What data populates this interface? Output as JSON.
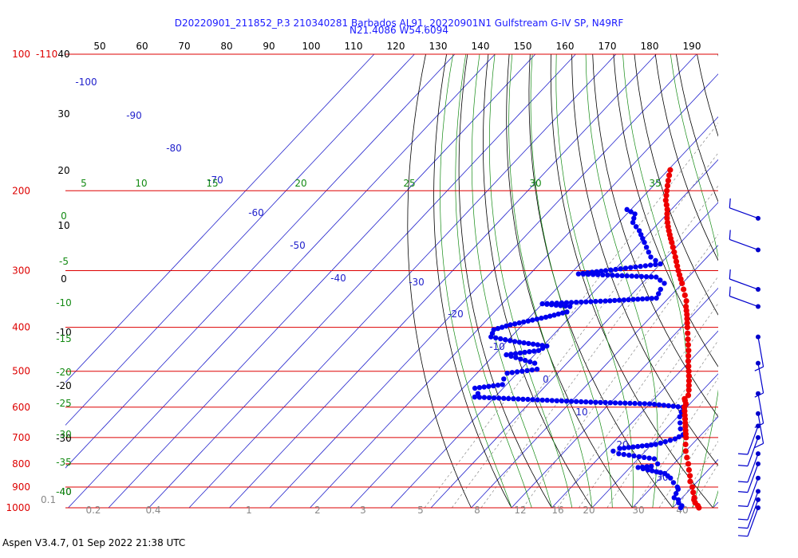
{
  "header": {
    "title_line1": "D20220901_211852_P.3 210340281 Barbados AL91, 20220901N1 Gulfstream G-IV SP, N49RF",
    "title_line2": "N21.4086 W54.6094"
  },
  "footer": {
    "text": "Aspen V3.4.7, 01 Sep 2022  21:38 UTC"
  },
  "chart_data": {
    "type": "skew-t",
    "pressure_levels": [
      {
        "p": 100,
        "label": "100"
      },
      {
        "p": 200,
        "label": "200"
      },
      {
        "p": 300,
        "label": "300"
      },
      {
        "p": 400,
        "label": "400"
      },
      {
        "p": 500,
        "label": "500"
      },
      {
        "p": 600,
        "label": "600"
      },
      {
        "p": 700,
        "label": "700"
      },
      {
        "p": 800,
        "label": "800"
      },
      {
        "p": 900,
        "label": "900"
      },
      {
        "p": 1000,
        "label": "1000"
      }
    ],
    "extra_label": "-110",
    "bottom_left_label": "0.1",
    "top_axis_labels": [
      "50",
      "60",
      "70",
      "80",
      "90",
      "100",
      "110",
      "120",
      "130",
      "140",
      "150",
      "160",
      "170",
      "180",
      "190"
    ],
    "left_axis_labels": [
      "40",
      "30",
      "20",
      "10",
      "0",
      "-10",
      "-20",
      "-30",
      "-40"
    ],
    "isotherm_labels": [
      "-100",
      "-90",
      "-80",
      "-70",
      "-60",
      "-50",
      "-40",
      "-30",
      "-20",
      "-10",
      "0",
      "10",
      "20",
      "30"
    ],
    "moist_adiabat_labels": [
      "5",
      "10",
      "15",
      "20",
      "25",
      "30",
      "35"
    ],
    "dry_adiabat_labels": [
      "0",
      "-5",
      "-10",
      "-15",
      "-20",
      "-25",
      "-30",
      "-35",
      "-40"
    ],
    "mixing_ratio_labels": [
      "0.2",
      "0.4",
      "1",
      "2",
      "3",
      "5",
      "8",
      "12",
      "16",
      "20",
      "30",
      "40"
    ],
    "temperature": [
      {
        "p": 1000,
        "t": 26.5
      },
      {
        "p": 990,
        "t": 25.8
      },
      {
        "p": 975,
        "t": 24.4
      },
      {
        "p": 960,
        "t": 23.4
      },
      {
        "p": 950,
        "t": 23.0
      },
      {
        "p": 925,
        "t": 21.5
      },
      {
        "p": 900,
        "t": 20.0
      },
      {
        "p": 875,
        "t": 18.2
      },
      {
        "p": 850,
        "t": 16.8
      },
      {
        "p": 825,
        "t": 15.2
      },
      {
        "p": 800,
        "t": 13.6
      },
      {
        "p": 775,
        "t": 11.8
      },
      {
        "p": 750,
        "t": 10.0
      },
      {
        "p": 725,
        "t": 8.4
      },
      {
        "p": 700,
        "t": 6.9
      },
      {
        "p": 675,
        "t": 5.1
      },
      {
        "p": 650,
        "t": 3.3
      },
      {
        "p": 625,
        "t": 1.4
      },
      {
        "p": 600,
        "t": -0.6
      },
      {
        "p": 590,
        "t": -1.0
      },
      {
        "p": 580,
        "t": -2.0
      },
      {
        "p": 575,
        "t": -2.5
      },
      {
        "p": 565,
        "t": -2.4
      },
      {
        "p": 550,
        "t": -3.5
      },
      {
        "p": 525,
        "t": -5.6
      },
      {
        "p": 500,
        "t": -7.9
      },
      {
        "p": 475,
        "t": -10.4
      },
      {
        "p": 450,
        "t": -12.8
      },
      {
        "p": 425,
        "t": -15.6
      },
      {
        "p": 400,
        "t": -18.5
      },
      {
        "p": 375,
        "t": -21.6
      },
      {
        "p": 360,
        "t": -23.7
      },
      {
        "p": 350,
        "t": -24.9
      },
      {
        "p": 340,
        "t": -26.6
      },
      {
        "p": 330,
        "t": -28.3
      },
      {
        "p": 320,
        "t": -30.1
      },
      {
        "p": 300,
        "t": -34.0
      },
      {
        "p": 280,
        "t": -37.9
      },
      {
        "p": 260,
        "t": -42.2
      },
      {
        "p": 250,
        "t": -44.5
      },
      {
        "p": 240,
        "t": -46.8
      },
      {
        "p": 230,
        "t": -49.0
      },
      {
        "p": 220,
        "t": -51.0
      },
      {
        "p": 210,
        "t": -53.5
      },
      {
        "p": 200,
        "t": -55.5
      },
      {
        "p": 190,
        "t": -57.5
      },
      {
        "p": 180,
        "t": -59.5
      }
    ],
    "dewpoint": [
      {
        "p": 1000,
        "t": 22.0
      },
      {
        "p": 990,
        "t": 21.8
      },
      {
        "p": 975,
        "t": 20.3
      },
      {
        "p": 960,
        "t": 19.5
      },
      {
        "p": 950,
        "t": 18.0
      },
      {
        "p": 930,
        "t": 17.5
      },
      {
        "p": 910,
        "t": 17.0
      },
      {
        "p": 900,
        "t": 16.3
      },
      {
        "p": 880,
        "t": 14.3
      },
      {
        "p": 860,
        "t": 12.5
      },
      {
        "p": 840,
        "t": 10.0
      },
      {
        "p": 825,
        "t": 5.0
      },
      {
        "p": 815,
        "t": 2.0
      },
      {
        "p": 810,
        "t": 5.0
      },
      {
        "p": 800,
        "t": 6.0
      },
      {
        "p": 780,
        "t": 4.0
      },
      {
        "p": 760,
        "t": -6.0
      },
      {
        "p": 750,
        "t": -8.0
      },
      {
        "p": 740,
        "t": -7.0
      },
      {
        "p": 725,
        "t": 1.0
      },
      {
        "p": 705,
        "t": 4.5
      },
      {
        "p": 690,
        "t": 5.5
      },
      {
        "p": 670,
        "t": 3.5
      },
      {
        "p": 650,
        "t": 2.0
      },
      {
        "p": 630,
        "t": 0.5
      },
      {
        "p": 600,
        "t": -1.0
      },
      {
        "p": 590,
        "t": -10.0
      },
      {
        "p": 585,
        "t": -25.0
      },
      {
        "p": 580,
        "t": -35.0
      },
      {
        "p": 570,
        "t": -55.0
      },
      {
        "p": 560,
        "t": -55.0
      },
      {
        "p": 545,
        "t": -57.0
      },
      {
        "p": 535,
        "t": -51.0
      },
      {
        "p": 520,
        "t": -52.0
      },
      {
        "p": 505,
        "t": -52.5
      },
      {
        "p": 495,
        "t": -46.0
      },
      {
        "p": 480,
        "t": -48.0
      },
      {
        "p": 460,
        "t": -57.0
      },
      {
        "p": 450,
        "t": -50.0
      },
      {
        "p": 440,
        "t": -49.0
      },
      {
        "p": 430,
        "t": -58.0
      },
      {
        "p": 420,
        "t": -65.0
      },
      {
        "p": 405,
        "t": -66.0
      },
      {
        "p": 395,
        "t": -63.0
      },
      {
        "p": 380,
        "t": -56.0
      },
      {
        "p": 370,
        "t": -52.0
      },
      {
        "p": 360,
        "t": -52.5
      },
      {
        "p": 355,
        "t": -60.0
      },
      {
        "p": 350,
        "t": -45.0
      },
      {
        "p": 345,
        "t": -33.0
      },
      {
        "p": 330,
        "t": -34.0
      },
      {
        "p": 320,
        "t": -34.5
      },
      {
        "p": 310,
        "t": -38.0
      },
      {
        "p": 305,
        "t": -58.0
      },
      {
        "p": 300,
        "t": -52.0
      },
      {
        "p": 290,
        "t": -40.0
      },
      {
        "p": 280,
        "t": -44.0
      },
      {
        "p": 260,
        "t": -49.0
      },
      {
        "p": 245,
        "t": -53.0
      },
      {
        "p": 235,
        "t": -56.5
      },
      {
        "p": 225,
        "t": -58.0
      },
      {
        "p": 220,
        "t": -61.0
      }
    ],
    "wind_barbs_p": [
      230,
      270,
      330,
      360,
      420,
      480,
      560,
      620,
      660,
      700,
      760,
      800,
      860,
      920,
      960,
      1000
    ]
  }
}
